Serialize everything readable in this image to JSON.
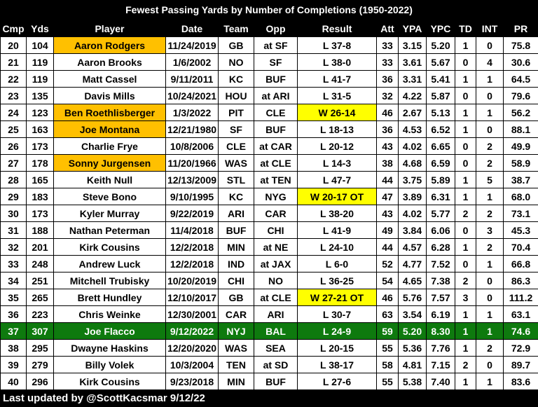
{
  "title": "Fewest Passing Yards by Number of Completions (1950-2022)",
  "columns": [
    "Cmp",
    "Yds",
    "Player",
    "Date",
    "Team",
    "Opp",
    "Result",
    "Att",
    "YPA",
    "YPC",
    "TD",
    "INT",
    "PR"
  ],
  "rows": [
    [
      "20",
      "104",
      "Aaron Rodgers",
      "11/24/2019",
      "GB",
      "at SF",
      "L 37-8",
      "33",
      "3.15",
      "5.20",
      "1",
      "0",
      "75.8"
    ],
    [
      "21",
      "119",
      "Aaron Brooks",
      "1/6/2002",
      "NO",
      "SF",
      "L 38-0",
      "33",
      "3.61",
      "5.67",
      "0",
      "4",
      "30.6"
    ],
    [
      "22",
      "119",
      "Matt Cassel",
      "9/11/2011",
      "KC",
      "BUF",
      "L 41-7",
      "36",
      "3.31",
      "5.41",
      "1",
      "1",
      "64.5"
    ],
    [
      "23",
      "135",
      "Davis Mills",
      "10/24/2021",
      "HOU",
      "at ARI",
      "L 31-5",
      "32",
      "4.22",
      "5.87",
      "0",
      "0",
      "79.6"
    ],
    [
      "24",
      "123",
      "Ben Roethlisberger",
      "1/3/2022",
      "PIT",
      "CLE",
      "W 26-14",
      "46",
      "2.67",
      "5.13",
      "1",
      "1",
      "56.2"
    ],
    [
      "25",
      "163",
      "Joe Montana",
      "12/21/1980",
      "SF",
      "BUF",
      "L 18-13",
      "36",
      "4.53",
      "6.52",
      "1",
      "0",
      "88.1"
    ],
    [
      "26",
      "173",
      "Charlie Frye",
      "10/8/2006",
      "CLE",
      "at CAR",
      "L 20-12",
      "43",
      "4.02",
      "6.65",
      "0",
      "2",
      "49.9"
    ],
    [
      "27",
      "178",
      "Sonny Jurgensen",
      "11/20/1966",
      "WAS",
      "at CLE",
      "L 14-3",
      "38",
      "4.68",
      "6.59",
      "0",
      "2",
      "58.9"
    ],
    [
      "28",
      "165",
      "Keith Null",
      "12/13/2009",
      "STL",
      "at TEN",
      "L 47-7",
      "44",
      "3.75",
      "5.89",
      "1",
      "5",
      "38.7"
    ],
    [
      "29",
      "183",
      "Steve Bono",
      "9/10/1995",
      "KC",
      "NYG",
      "W 20-17 OT",
      "47",
      "3.89",
      "6.31",
      "1",
      "1",
      "68.0"
    ],
    [
      "30",
      "173",
      "Kyler Murray",
      "9/22/2019",
      "ARI",
      "CAR",
      "L 38-20",
      "43",
      "4.02",
      "5.77",
      "2",
      "2",
      "73.1"
    ],
    [
      "31",
      "188",
      "Nathan Peterman",
      "11/4/2018",
      "BUF",
      "CHI",
      "L 41-9",
      "49",
      "3.84",
      "6.06",
      "0",
      "3",
      "45.3"
    ],
    [
      "32",
      "201",
      "Kirk Cousins",
      "12/2/2018",
      "MIN",
      "at NE",
      "L 24-10",
      "44",
      "4.57",
      "6.28",
      "1",
      "2",
      "70.4"
    ],
    [
      "33",
      "248",
      "Andrew Luck",
      "12/2/2018",
      "IND",
      "at JAX",
      "L 6-0",
      "52",
      "4.77",
      "7.52",
      "0",
      "1",
      "66.8"
    ],
    [
      "34",
      "251",
      "Mitchell Trubisky",
      "10/20/2019",
      "CHI",
      "NO",
      "L 36-25",
      "54",
      "4.65",
      "7.38",
      "2",
      "0",
      "86.3"
    ],
    [
      "35",
      "265",
      "Brett Hundley",
      "12/10/2017",
      "GB",
      "at CLE",
      "W 27-21 OT",
      "46",
      "5.76",
      "7.57",
      "3",
      "0",
      "111.2"
    ],
    [
      "36",
      "223",
      "Chris Weinke",
      "12/30/2001",
      "CAR",
      "ARI",
      "L 30-7",
      "63",
      "3.54",
      "6.19",
      "1",
      "1",
      "63.1"
    ],
    [
      "37",
      "307",
      "Joe Flacco",
      "9/12/2022",
      "NYJ",
      "BAL",
      "L 24-9",
      "59",
      "5.20",
      "8.30",
      "1",
      "1",
      "74.6"
    ],
    [
      "38",
      "295",
      "Dwayne Haskins",
      "12/20/2020",
      "WAS",
      "SEA",
      "L 20-15",
      "55",
      "5.36",
      "7.76",
      "1",
      "2",
      "72.9"
    ],
    [
      "39",
      "279",
      "Billy Volek",
      "10/3/2004",
      "TEN",
      "at SD",
      "L 38-17",
      "58",
      "4.81",
      "7.15",
      "2",
      "0",
      "89.7"
    ],
    [
      "40",
      "296",
      "Kirk Cousins",
      "9/23/2018",
      "MIN",
      "BUF",
      "L 27-6",
      "55",
      "5.38",
      "7.40",
      "1",
      "1",
      "83.6"
    ]
  ],
  "footer": "Last updated by @ScottKacsmar 9/12/22"
}
